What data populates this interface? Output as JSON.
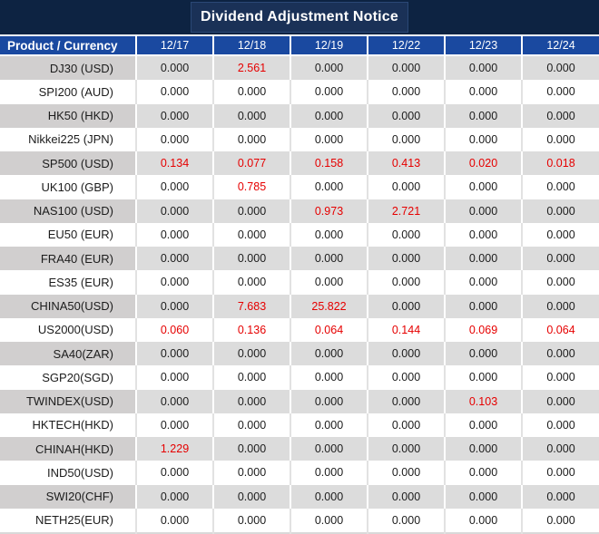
{
  "title": "Dividend Adjustment Notice",
  "table": {
    "header": {
      "product_col": "Product / Currency",
      "dates": [
        "12/17",
        "12/18",
        "12/19",
        "12/22",
        "12/23",
        "12/24"
      ]
    },
    "rows": [
      {
        "product": "DJ30 (USD)",
        "values": [
          "0.000",
          "2.561",
          "0.000",
          "0.000",
          "0.000",
          "0.000"
        ]
      },
      {
        "product": "SPI200 (AUD)",
        "values": [
          "0.000",
          "0.000",
          "0.000",
          "0.000",
          "0.000",
          "0.000"
        ]
      },
      {
        "product": "HK50 (HKD)",
        "values": [
          "0.000",
          "0.000",
          "0.000",
          "0.000",
          "0.000",
          "0.000"
        ]
      },
      {
        "product": "Nikkei225 (JPN)",
        "values": [
          "0.000",
          "0.000",
          "0.000",
          "0.000",
          "0.000",
          "0.000"
        ]
      },
      {
        "product": "SP500 (USD)",
        "values": [
          "0.134",
          "0.077",
          "0.158",
          "0.413",
          "0.020",
          "0.018"
        ]
      },
      {
        "product": "UK100 (GBP)",
        "values": [
          "0.000",
          "0.785",
          "0.000",
          "0.000",
          "0.000",
          "0.000"
        ]
      },
      {
        "product": "NAS100 (USD)",
        "values": [
          "0.000",
          "0.000",
          "0.973",
          "2.721",
          "0.000",
          "0.000"
        ]
      },
      {
        "product": "EU50 (EUR)",
        "values": [
          "0.000",
          "0.000",
          "0.000",
          "0.000",
          "0.000",
          "0.000"
        ]
      },
      {
        "product": "FRA40 (EUR)",
        "values": [
          "0.000",
          "0.000",
          "0.000",
          "0.000",
          "0.000",
          "0.000"
        ]
      },
      {
        "product": "ES35 (EUR)",
        "values": [
          "0.000",
          "0.000",
          "0.000",
          "0.000",
          "0.000",
          "0.000"
        ]
      },
      {
        "product": "CHINA50(USD)",
        "values": [
          "0.000",
          "7.683",
          "25.822",
          "0.000",
          "0.000",
          "0.000"
        ]
      },
      {
        "product": "US2000(USD)",
        "values": [
          "0.060",
          "0.136",
          "0.064",
          "0.144",
          "0.069",
          "0.064"
        ]
      },
      {
        "product": "SA40(ZAR)",
        "values": [
          "0.000",
          "0.000",
          "0.000",
          "0.000",
          "0.000",
          "0.000"
        ]
      },
      {
        "product": "SGP20(SGD)",
        "values": [
          "0.000",
          "0.000",
          "0.000",
          "0.000",
          "0.000",
          "0.000"
        ]
      },
      {
        "product": "TWINDEX(USD)",
        "values": [
          "0.000",
          "0.000",
          "0.000",
          "0.000",
          "0.103",
          "0.000"
        ]
      },
      {
        "product": "HKTECH(HKD)",
        "values": [
          "0.000",
          "0.000",
          "0.000",
          "0.000",
          "0.000",
          "0.000"
        ]
      },
      {
        "product": "CHINAH(HKD)",
        "values": [
          "1.229",
          "0.000",
          "0.000",
          "0.000",
          "0.000",
          "0.000"
        ]
      },
      {
        "product": "IND50(USD)",
        "values": [
          "0.000",
          "0.000",
          "0.000",
          "0.000",
          "0.000",
          "0.000"
        ]
      },
      {
        "product": "SWI20(CHF)",
        "values": [
          "0.000",
          "0.000",
          "0.000",
          "0.000",
          "0.000",
          "0.000"
        ]
      },
      {
        "product": "NETH25(EUR)",
        "values": [
          "0.000",
          "0.000",
          "0.000",
          "0.000",
          "0.000",
          "0.000"
        ]
      }
    ],
    "zero_value": "0.000"
  },
  "colors": {
    "header_band_bg": "#0d2342",
    "title_box_bg": "#1a3157",
    "title_box_border": "#2b4876",
    "column_header_bg": "#1a49a0",
    "header_text": "#ffffff",
    "row_stripe_bg": "#dcdcdc",
    "product_stripe_bg": "#d1cfcf",
    "row_white_bg": "#ffffff",
    "value_text": "#1c1c1c",
    "highlight_value_text": "#e60000",
    "grid_line_on_stripe": "#ffffff",
    "grid_line_on_white": "#e2e2e2"
  }
}
